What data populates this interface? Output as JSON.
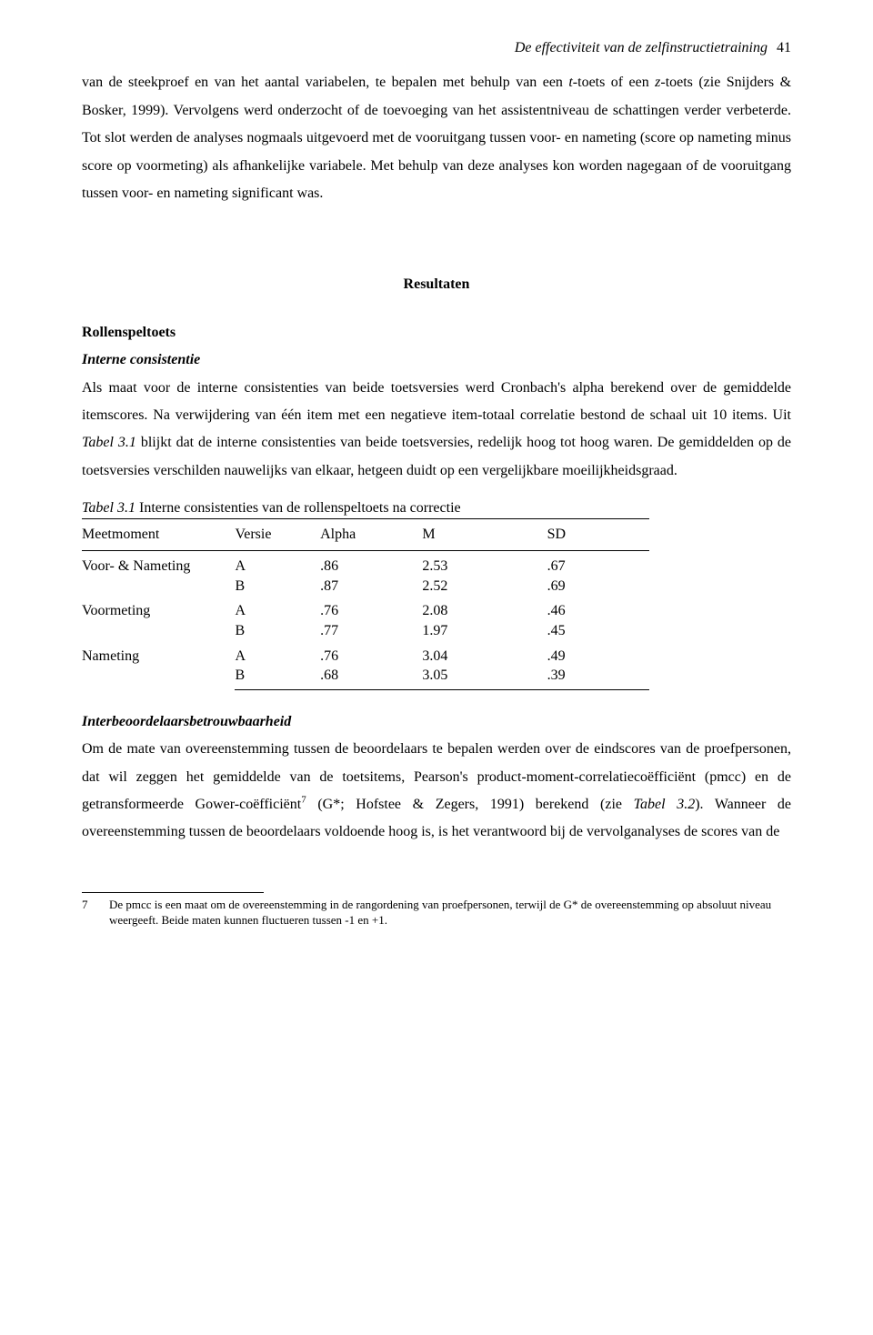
{
  "header": {
    "running_title": "De effectiviteit van de zelfinstructietraining",
    "page_number": "41"
  },
  "paragraphs": {
    "p1a": "van de steekproef en van het aantal variabelen, te bepalen met behulp van een ",
    "p1b": "t",
    "p1c": "-toets of een ",
    "p1d": "z",
    "p1e": "-toets (zie Snijders & Bosker, 1999). Vervolgens werd onderzocht of de toevoeging van het assistentniveau de schattingen verder verbeterde. Tot slot werden de analyses nogmaals uitgevoerd met de vooruitgang tussen voor- en nameting (score op nameting minus score op voormeting) als afhankelijke variabele. Met behulp van deze analyses kon worden nagegaan of de vooruitgang tussen voor- en nameting significant was.",
    "section_heading": "Resultaten",
    "h_rollenspel": "Rollenspeltoets",
    "h_interne": "Interne consistentie",
    "p2a": "Als maat voor de interne consistenties van beide toetsversies werd Cronbach's alpha berekend over de gemiddelde itemscores. Na verwijdering van één item met een negatieve item-totaal correlatie bestond de schaal uit 10 items. Uit ",
    "p2b": "Tabel 3.1",
    "p2c": " blijkt dat de interne consistenties van beide toetsversies, redelijk hoog tot hoog waren. De gemiddelden op de toetsversies verschilden nauwelijks van elkaar, hetgeen duidt op een vergelijkbare moeilijkheidsgraad.",
    "table_caption_a": "Tabel 3.1",
    "table_caption_b": "   Interne consistenties van de rollenspeltoets na correctie",
    "h_interbeoord": "Interbeoordelaarsbetrouwbaarheid",
    "p3a": "Om de mate van overeenstemming tussen de beoordelaars te bepalen werden over de eindscores van de proefpersonen, dat wil zeggen het gemiddelde van de toetsitems, Pearson's product-moment-correlatiecoëfficiënt (pmcc) en de getransformeerde Gower-coëfficiënt",
    "p3sup": "7",
    "p3b": " (G*; Hofstee & Zegers, 1991) berekend (zie ",
    "p3c": "Tabel 3.2",
    "p3d": "). Wanneer de overeenstemming tussen de beoordelaars voldoende hoog is, is het verantwoord bij de vervolganalyses de scores van de"
  },
  "table": {
    "columns": [
      "Meetmoment",
      "Versie",
      "Alpha",
      "M",
      "SD"
    ],
    "groups": [
      {
        "label": "Voor- & Nameting",
        "rows": [
          {
            "versie": "A",
            "alpha": ".86",
            "m": "2.53",
            "sd": ".67"
          },
          {
            "versie": "B",
            "alpha": ".87",
            "m": "2.52",
            "sd": ".69"
          }
        ]
      },
      {
        "label": "Voormeting",
        "rows": [
          {
            "versie": "A",
            "alpha": ".76",
            "m": "2.08",
            "sd": ".46"
          },
          {
            "versie": "B",
            "alpha": ".77",
            "m": "1.97",
            "sd": ".45"
          }
        ]
      },
      {
        "label": "Nameting",
        "rows": [
          {
            "versie": "A",
            "alpha": ".76",
            "m": "3.04",
            "sd": ".49"
          },
          {
            "versie": "B",
            "alpha": ".68",
            "m": "3.05",
            "sd": ".39"
          }
        ]
      }
    ]
  },
  "footnote": {
    "num": "7",
    "text": "De pmcc is een maat om de overeenstemming in de rangordening van proefpersonen, terwijl de G* de overeenstemming op absoluut niveau weergeeft. Beide maten kunnen fluctueren tussen -1 en +1."
  }
}
